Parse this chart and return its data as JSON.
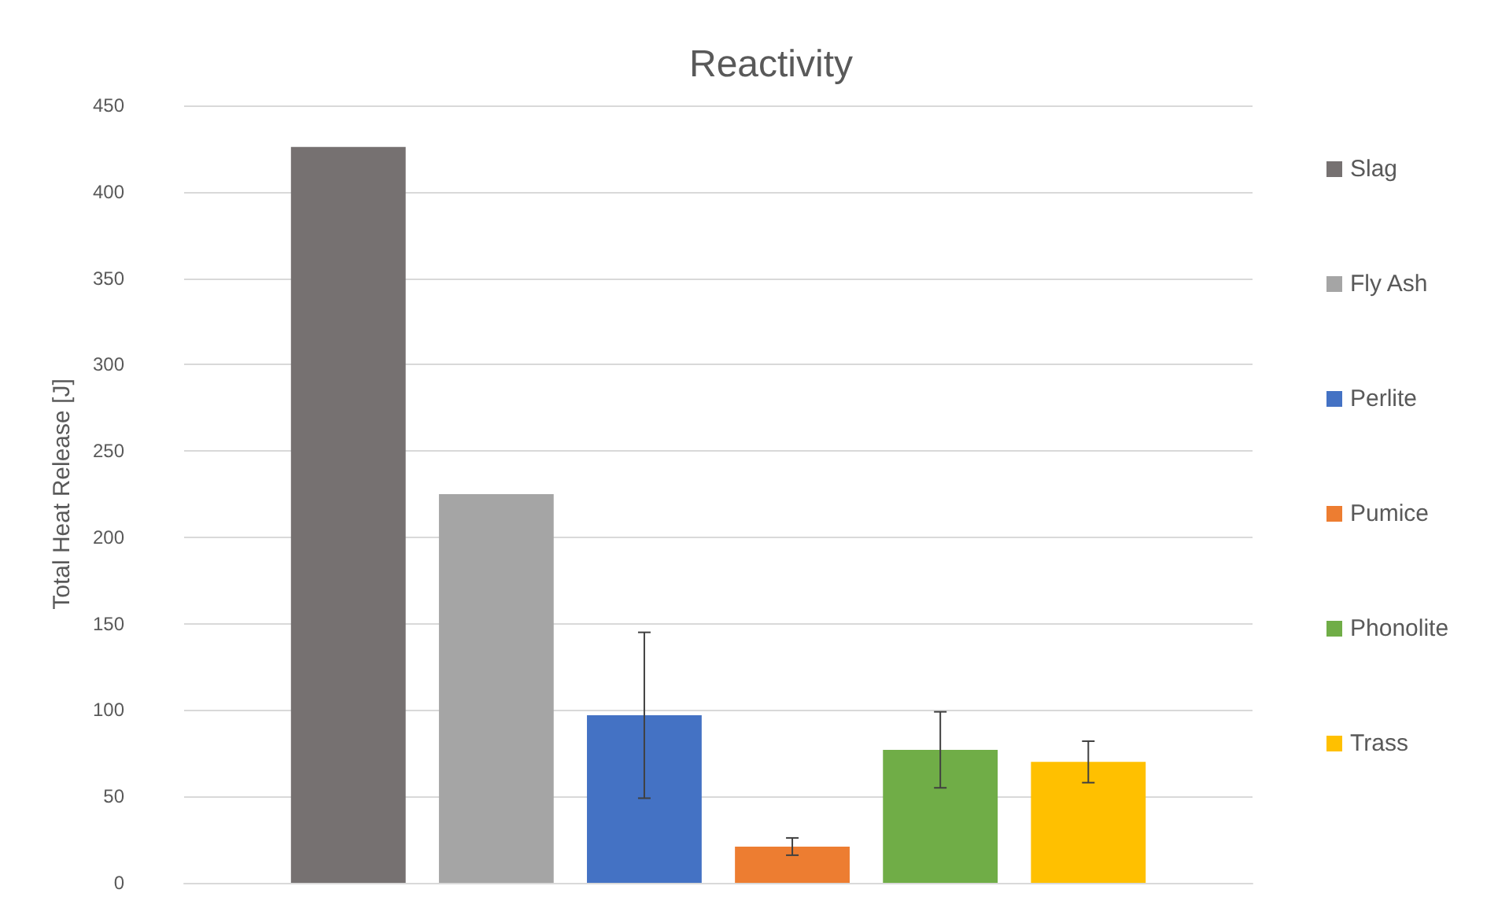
{
  "chart_data": {
    "type": "bar",
    "title": "Reactivity",
    "ylabel": "Total Heat Release [J]",
    "categories": [
      null
    ],
    "ylim": [
      0,
      450
    ],
    "yticks": [
      0,
      50,
      100,
      150,
      200,
      250,
      300,
      350,
      400,
      450
    ],
    "grid": "y",
    "legend": "right",
    "series": [
      {
        "name": "Slag",
        "color": "#767171",
        "values": [
          426
        ]
      },
      {
        "name": "Fly Ash",
        "color": "#a5a5a5",
        "values": [
          225
        ]
      },
      {
        "name": "Perlite",
        "color": "#4472c4",
        "values": [
          97
        ],
        "errors": [
          48
        ]
      },
      {
        "name": "Pumice",
        "color": "#ed7d31",
        "values": [
          21
        ],
        "errors": [
          5
        ]
      },
      {
        "name": "Phonolite",
        "color": "#70ad47",
        "values": [
          77
        ],
        "errors": [
          22
        ]
      },
      {
        "name": "Trass",
        "color": "#ffc000",
        "values": [
          70
        ],
        "errors": [
          12
        ]
      }
    ]
  }
}
